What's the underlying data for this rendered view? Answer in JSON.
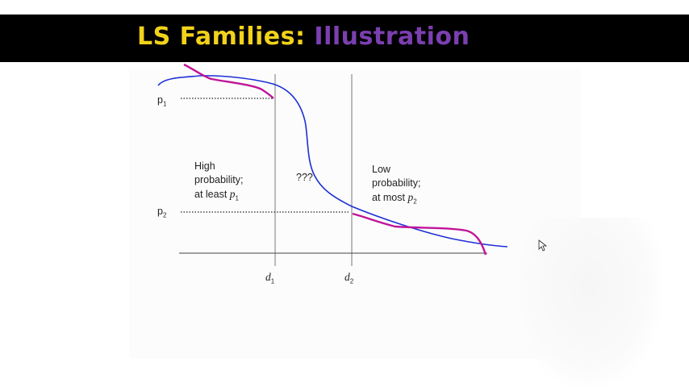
{
  "slide": {
    "title_part1": "LS Families: ",
    "title_part2": "Illustration"
  },
  "diagram": {
    "p1_label": "p",
    "p1_sub": "1",
    "p2_label": "p",
    "p2_sub": "2",
    "d1_label": "d",
    "d1_sub": "1",
    "d2_label": "d",
    "d2_sub": "2",
    "high_line1": "High",
    "high_line2": "probability;",
    "high_line3": "at least ",
    "high_var": "p",
    "high_sub": "1",
    "middle_label": "???",
    "low_line1": "Low",
    "low_line2": "probability;",
    "low_line3": "at most ",
    "low_var": "p",
    "low_sub": "2",
    "colors": {
      "blue_curve": "#1c2fd6",
      "magenta_curve": "#c0159a"
    }
  }
}
